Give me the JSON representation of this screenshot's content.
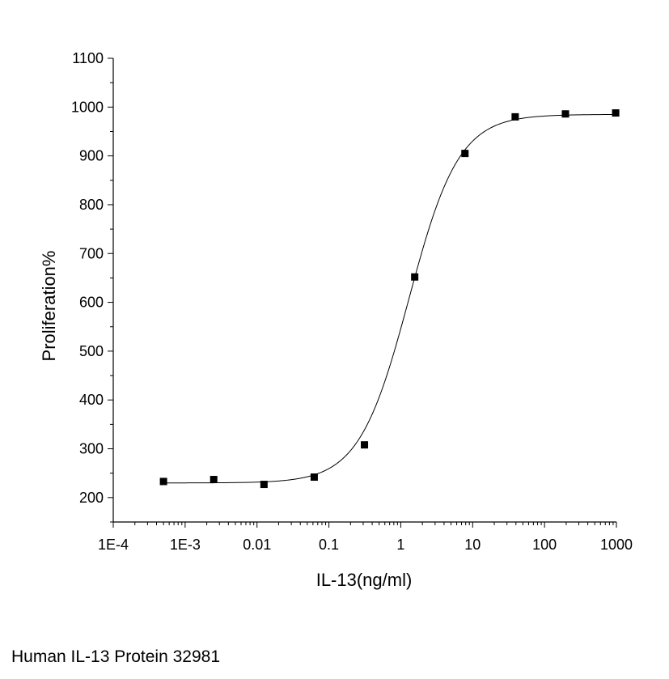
{
  "caption": "Human IL-13 Protein 32981",
  "chart_data": {
    "type": "scatter",
    "title": "",
    "xlabel": "IL-13(ng/ml)",
    "ylabel": "Proliferation%",
    "xscale": "log",
    "xlim": [
      0.0001,
      1000
    ],
    "ylim": [
      150,
      1100
    ],
    "x_ticks": [
      {
        "value": 0.0001,
        "label": "1E-4"
      },
      {
        "value": 0.001,
        "label": "1E-3"
      },
      {
        "value": 0.01,
        "label": "0.01"
      },
      {
        "value": 0.1,
        "label": "0.1"
      },
      {
        "value": 1,
        "label": "1"
      },
      {
        "value": 10,
        "label": "10"
      },
      {
        "value": 100,
        "label": "100"
      },
      {
        "value": 1000,
        "label": "1000"
      }
    ],
    "y_ticks": [
      200,
      300,
      400,
      500,
      600,
      700,
      800,
      900,
      1000,
      1100
    ],
    "grid": false,
    "legend": "none",
    "series": [
      {
        "marker": "square",
        "color": "#000000",
        "x": [
          0.0005,
          0.0025,
          0.0125,
          0.0625,
          0.3125,
          1.5625,
          7.8125,
          39.0625,
          195.3125,
          976.5625
        ],
        "y": [
          233,
          237,
          227,
          242,
          308,
          652,
          905,
          980,
          986,
          988
        ]
      }
    ],
    "fit": {
      "model": "4PL",
      "bottom": 230,
      "top": 985,
      "ec50": 1.3,
      "hill": 1.25
    }
  }
}
